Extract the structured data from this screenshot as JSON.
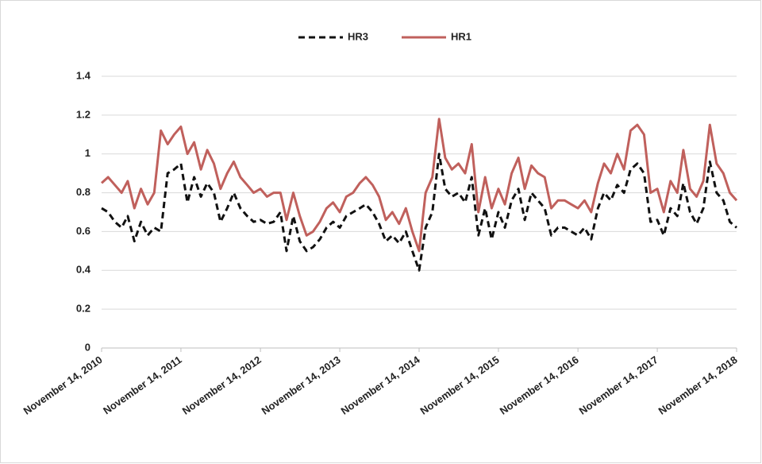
{
  "chart_data": {
    "type": "line",
    "x": [
      "2010-11-14",
      "2010-12-14",
      "2011-01-14",
      "2011-02-14",
      "2011-03-14",
      "2011-04-14",
      "2011-05-14",
      "2011-06-14",
      "2011-07-14",
      "2011-08-14",
      "2011-09-14",
      "2011-10-14",
      "2011-11-14",
      "2011-12-14",
      "2012-01-14",
      "2012-02-14",
      "2012-03-14",
      "2012-04-14",
      "2012-05-14",
      "2012-06-14",
      "2012-07-14",
      "2012-08-14",
      "2012-09-14",
      "2012-10-14",
      "2012-11-14",
      "2012-12-14",
      "2013-01-14",
      "2013-02-14",
      "2013-03-14",
      "2013-04-14",
      "2013-05-14",
      "2013-06-14",
      "2013-07-14",
      "2013-08-14",
      "2013-09-14",
      "2013-10-14",
      "2013-11-14",
      "2013-12-14",
      "2014-01-14",
      "2014-02-14",
      "2014-03-14",
      "2014-04-14",
      "2014-05-14",
      "2014-06-14",
      "2014-07-14",
      "2014-08-14",
      "2014-09-14",
      "2014-10-14",
      "2014-11-14",
      "2014-12-14",
      "2015-01-14",
      "2015-02-14",
      "2015-03-14",
      "2015-04-14",
      "2015-05-14",
      "2015-06-14",
      "2015-07-14",
      "2015-08-14",
      "2015-09-14",
      "2015-10-14",
      "2015-11-14",
      "2015-12-14",
      "2016-01-14",
      "2016-02-14",
      "2016-03-14",
      "2016-04-14",
      "2016-05-14",
      "2016-06-14",
      "2016-07-14",
      "2016-08-14",
      "2016-09-14",
      "2016-10-14",
      "2016-11-14",
      "2016-12-14",
      "2017-01-14",
      "2017-02-14",
      "2017-03-14",
      "2017-04-14",
      "2017-05-14",
      "2017-06-14",
      "2017-07-14",
      "2017-08-14",
      "2017-09-14",
      "2017-10-14",
      "2017-11-14",
      "2017-12-14",
      "2018-01-14",
      "2018-02-14",
      "2018-03-14",
      "2018-04-14",
      "2018-05-14",
      "2018-06-14",
      "2018-07-14",
      "2018-08-14",
      "2018-09-14",
      "2018-10-14",
      "2018-11-14"
    ],
    "series": [
      {
        "name": "HR3",
        "color": "#111111",
        "dashed": true,
        "values": [
          0.72,
          0.7,
          0.65,
          0.62,
          0.68,
          0.55,
          0.65,
          0.58,
          0.62,
          0.6,
          0.9,
          0.92,
          0.95,
          0.75,
          0.88,
          0.78,
          0.85,
          0.8,
          0.65,
          0.72,
          0.8,
          0.72,
          0.68,
          0.65,
          0.66,
          0.64,
          0.65,
          0.7,
          0.5,
          0.68,
          0.55,
          0.5,
          0.52,
          0.56,
          0.62,
          0.65,
          0.62,
          0.68,
          0.7,
          0.72,
          0.74,
          0.7,
          0.64,
          0.55,
          0.58,
          0.54,
          0.6,
          0.5,
          0.4,
          0.62,
          0.7,
          1.0,
          0.82,
          0.78,
          0.8,
          0.75,
          0.88,
          0.58,
          0.72,
          0.56,
          0.7,
          0.62,
          0.76,
          0.82,
          0.66,
          0.8,
          0.76,
          0.72,
          0.58,
          0.62,
          0.62,
          0.6,
          0.58,
          0.62,
          0.56,
          0.72,
          0.8,
          0.76,
          0.84,
          0.8,
          0.92,
          0.95,
          0.9,
          0.65,
          0.66,
          0.58,
          0.72,
          0.68,
          0.85,
          0.7,
          0.64,
          0.72,
          0.96,
          0.8,
          0.76,
          0.65,
          0.62
        ]
      },
      {
        "name": "HR1",
        "color": "#c0605c",
        "dashed": false,
        "values": [
          0.85,
          0.88,
          0.84,
          0.8,
          0.86,
          0.72,
          0.82,
          0.74,
          0.8,
          1.12,
          1.05,
          1.1,
          1.14,
          1.0,
          1.06,
          0.92,
          1.02,
          0.95,
          0.82,
          0.9,
          0.96,
          0.88,
          0.84,
          0.8,
          0.82,
          0.78,
          0.8,
          0.8,
          0.66,
          0.8,
          0.68,
          0.58,
          0.6,
          0.65,
          0.72,
          0.75,
          0.7,
          0.78,
          0.8,
          0.85,
          0.88,
          0.84,
          0.78,
          0.66,
          0.7,
          0.64,
          0.72,
          0.6,
          0.5,
          0.8,
          0.88,
          1.18,
          0.98,
          0.92,
          0.95,
          0.9,
          1.05,
          0.7,
          0.88,
          0.72,
          0.82,
          0.74,
          0.9,
          0.98,
          0.82,
          0.94,
          0.9,
          0.88,
          0.72,
          0.76,
          0.76,
          0.74,
          0.72,
          0.76,
          0.7,
          0.85,
          0.95,
          0.9,
          1.0,
          0.92,
          1.12,
          1.15,
          1.1,
          0.8,
          0.82,
          0.7,
          0.86,
          0.8,
          1.02,
          0.82,
          0.78,
          0.86,
          1.15,
          0.95,
          0.9,
          0.8,
          0.76
        ]
      }
    ],
    "xlim": [
      "2010-11-14",
      "2018-11-14"
    ],
    "xticks": [
      {
        "value": "2010-11-14",
        "label": "November 14, 2010"
      },
      {
        "value": "2011-11-14",
        "label": "November 14, 2011"
      },
      {
        "value": "2012-11-14",
        "label": "November 14, 2012"
      },
      {
        "value": "2013-11-14",
        "label": "November 14, 2013"
      },
      {
        "value": "2014-11-14",
        "label": "November 14, 2014"
      },
      {
        "value": "2015-11-14",
        "label": "November 14, 2015"
      },
      {
        "value": "2016-11-14",
        "label": "November 14, 2016"
      },
      {
        "value": "2017-11-14",
        "label": "November 14, 2017"
      },
      {
        "value": "2018-11-14",
        "label": "November 14, 2018"
      }
    ],
    "ylim": [
      0,
      1.4
    ],
    "yticks": [
      0,
      0.2,
      0.4,
      0.6,
      0.8,
      1,
      1.2,
      1.4
    ],
    "grid": true,
    "legend": "top"
  }
}
